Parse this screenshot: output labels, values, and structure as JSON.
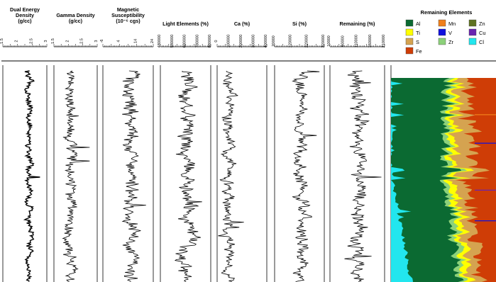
{
  "chart_data": {
    "type": "line",
    "tracks": [
      {
        "name": "Dual Energy Density",
        "title_lines": [
          "Dual Energy",
          "Density",
          "(g/cc)"
        ],
        "ticks": [
          "1.5",
          "2",
          "2.5",
          "3"
        ]
      },
      {
        "name": "Gamma Density",
        "title_lines": [
          "Gamma Density",
          "(g/cc)"
        ],
        "ticks": [
          "1.5",
          "2",
          "2.5",
          "3"
        ]
      },
      {
        "name": "Magnetic Susceptibility",
        "title_lines": [
          "Magnetic",
          "Susceptibility",
          "(10⁻⁶ cgs)"
        ],
        "ticks": [
          "-6",
          "4",
          "14",
          "24"
        ]
      },
      {
        "name": "Light Elements (%)",
        "title_lines": [
          "Light Elements (%)"
        ],
        "ticks": [
          "480000",
          "580000",
          "680000",
          "780000",
          "880000"
        ]
      },
      {
        "name": "Ca (%)",
        "title_lines": [
          "Ca (%)"
        ],
        "ticks": [
          "0",
          "100000",
          "200000",
          "300000",
          "400000"
        ]
      },
      {
        "name": "Si (%)",
        "title_lines": [
          "Si (%)"
        ],
        "ticks": [
          "20000",
          "120000",
          "220000",
          "320000"
        ]
      },
      {
        "name": "Remaining (%)",
        "title_lines": [
          "Remaining (%)"
        ],
        "ticks": [
          "10000",
          "60000",
          "110000",
          "160000",
          "210000"
        ]
      }
    ],
    "legend": {
      "title": "Remaining Elements",
      "placement": "top-right",
      "items": [
        {
          "label": "Al",
          "color": "#0b6a32"
        },
        {
          "label": "Mn",
          "color": "#f07f1a"
        },
        {
          "label": "Zn",
          "color": "#5f7320"
        },
        {
          "label": "Ti",
          "color": "#ffff00"
        },
        {
          "label": "V",
          "color": "#1010dd"
        },
        {
          "label": "Cu",
          "color": "#6a23b0"
        },
        {
          "label": "S",
          "color": "#d5a350"
        },
        {
          "label": "Zr",
          "color": "#8cd17a"
        },
        {
          "label": "Cl",
          "color": "#22e6ee"
        },
        {
          "label": "Fe",
          "color": "#cf3d06"
        }
      ]
    },
    "stacked_area": {
      "type": "area",
      "order": [
        "Cl",
        "Al",
        "Zr",
        "Ti",
        "S",
        "Fe"
      ]
    }
  }
}
